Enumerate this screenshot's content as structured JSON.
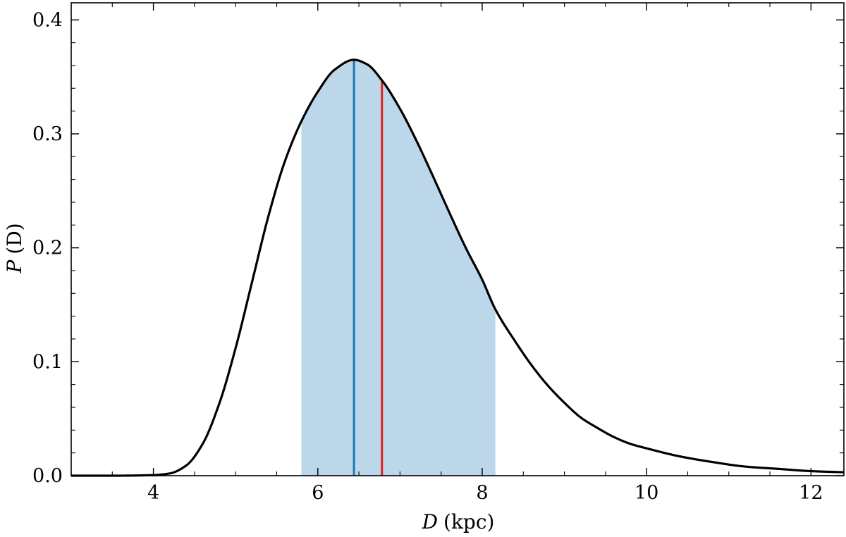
{
  "chart_data": {
    "type": "line",
    "xlabel_var": "D",
    "xlabel_unit": "(kpc)",
    "ylabel_var": "P",
    "ylabel_arg": "(D)",
    "xlim": [
      3.0,
      12.4
    ],
    "ylim": [
      0.0,
      0.415
    ],
    "x_ticks": [
      4,
      6,
      8,
      10,
      12
    ],
    "y_ticks": [
      0.0,
      0.1,
      0.2,
      0.3,
      0.4
    ],
    "x_tick_labels": [
      "4",
      "6",
      "8",
      "10",
      "12"
    ],
    "y_tick_labels": [
      "0.0",
      "0.1",
      "0.2",
      "0.3",
      "0.4"
    ],
    "series": [
      {
        "color": "#000000",
        "x": [
          3.0,
          3.5,
          4.0,
          4.2,
          4.4,
          4.6,
          4.8,
          5.0,
          5.2,
          5.4,
          5.6,
          5.8,
          6.0,
          6.2,
          6.44,
          6.6,
          6.78,
          7.0,
          7.2,
          7.4,
          7.6,
          7.8,
          8.0,
          8.16,
          8.4,
          8.6,
          8.8,
          9.0,
          9.2,
          9.4,
          9.6,
          9.8,
          10.0,
          10.4,
          10.8,
          11.2,
          11.6,
          12.0,
          12.4
        ],
        "y": [
          0.0,
          0.0,
          0.0005,
          0.002,
          0.009,
          0.028,
          0.063,
          0.112,
          0.17,
          0.228,
          0.276,
          0.311,
          0.337,
          0.356,
          0.365,
          0.361,
          0.347,
          0.322,
          0.294,
          0.263,
          0.231,
          0.2,
          0.172,
          0.146,
          0.118,
          0.097,
          0.079,
          0.064,
          0.051,
          0.042,
          0.034,
          0.028,
          0.024,
          0.017,
          0.012,
          0.008,
          0.006,
          0.004,
          0.003
        ]
      }
    ],
    "shaded_interval": {
      "x_range": [
        5.8,
        8.16
      ],
      "color": "#bcd7e9"
    },
    "vertical_lines": [
      {
        "x": 6.44,
        "color": "#1f77b4"
      },
      {
        "x": 6.78,
        "color": "#e41a1c"
      }
    ],
    "grid": false
  }
}
